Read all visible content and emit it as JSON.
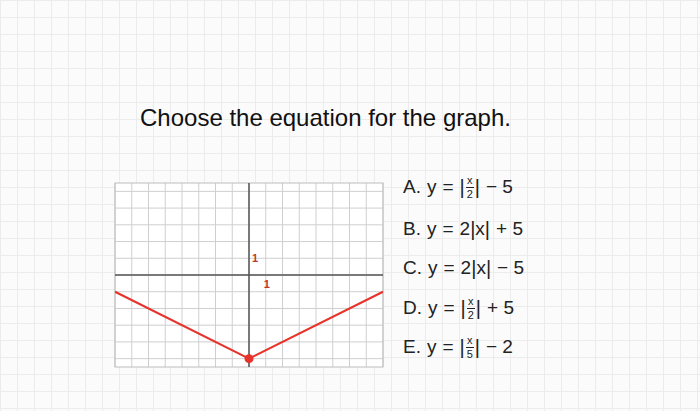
{
  "question": "Choose the equation for the graph.",
  "options": [
    {
      "letter": "A.",
      "lhs": "y",
      "equals": "=",
      "bar": "|",
      "num": "x",
      "den": "2",
      "tail": "− 5"
    },
    {
      "letter": "B.",
      "lhs": "y",
      "equals": "=",
      "coef": "2",
      "bar": "|",
      "inner": "x",
      "tail": "+ 5"
    },
    {
      "letter": "C.",
      "lhs": "y",
      "equals": "=",
      "coef": "2",
      "bar": "|",
      "inner": "x",
      "tail": "− 5"
    },
    {
      "letter": "D.",
      "lhs": "y",
      "equals": "=",
      "bar": "|",
      "num": "x",
      "den": "2",
      "tail": "+ 5"
    },
    {
      "letter": "E.",
      "lhs": "y",
      "equals": "=",
      "bar": "|",
      "num": "x",
      "den": "5",
      "tail": "− 2"
    }
  ],
  "chart_data": {
    "type": "line",
    "xlim": [
      -8,
      8
    ],
    "ylim": [
      -5.5,
      5.5
    ],
    "xticks": [
      1
    ],
    "yticks": [
      1
    ],
    "grid": true,
    "series": [
      {
        "type": "line",
        "x": [
          -8,
          0,
          8
        ],
        "values": [
          -1,
          -5,
          -1
        ],
        "color": "#e8332b"
      },
      {
        "type": "scatter",
        "x": [
          0
        ],
        "values": [
          -5
        ],
        "color": "#e8332b",
        "marker": "circle"
      }
    ]
  }
}
